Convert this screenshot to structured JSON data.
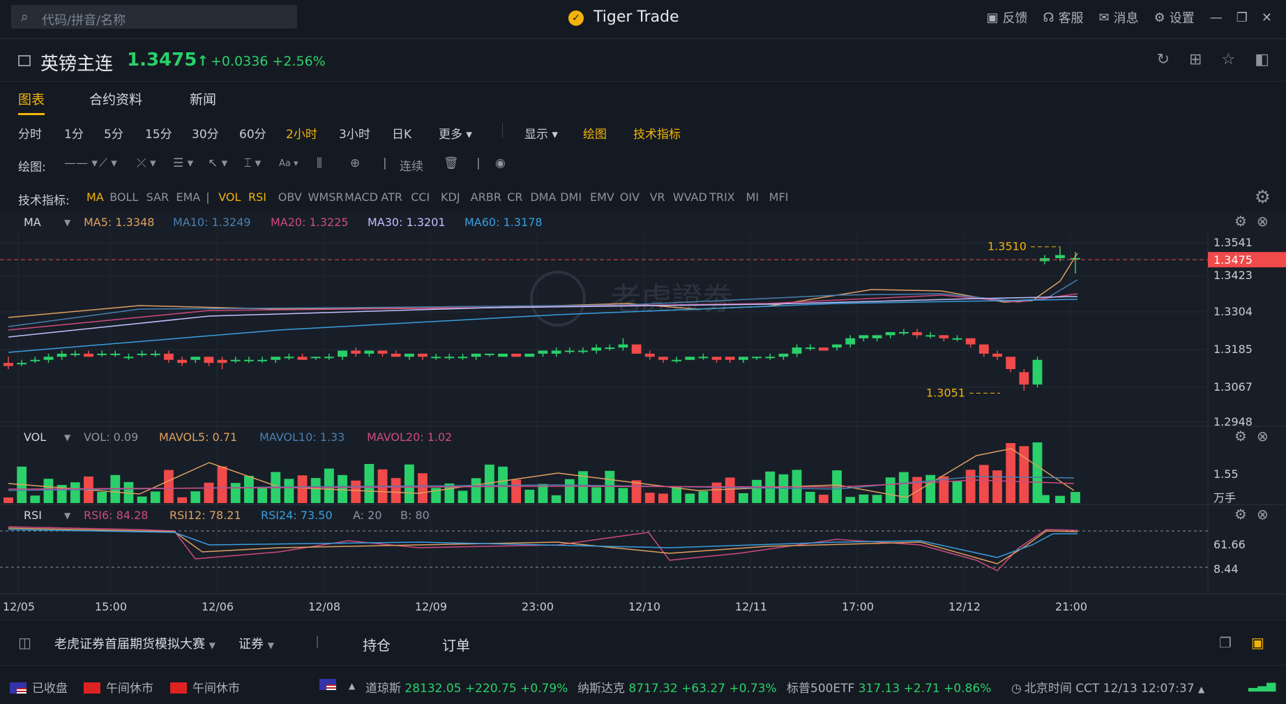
{
  "titlebar": {
    "search_placeholder": "代码/拼音/名称",
    "app_title": "Tiger Trade",
    "feedback": "反馈",
    "service": "客服",
    "messages": "消息",
    "settings": "设置"
  },
  "quote": {
    "name": "英镑主连",
    "price": "1.3475",
    "price_arrow": "↑",
    "change": "+0.0336",
    "change_pct": "+2.56%"
  },
  "tabs": [
    {
      "label": "图表",
      "active": true
    },
    {
      "label": "合约资料",
      "active": false
    },
    {
      "label": "新闻",
      "active": false
    }
  ],
  "periods": [
    "分时",
    "1分",
    "5分",
    "15分",
    "30分",
    "60分",
    "2小时",
    "3小时",
    "日K",
    "更多"
  ],
  "period_active": "2小时",
  "period_right": {
    "display": "显示",
    "draw": "绘图",
    "tech": "技术指标"
  },
  "draw_row": {
    "label": "绘图:",
    "continuous": "连续"
  },
  "indicator_row": {
    "label": "技术指标:",
    "main": [
      "MA",
      "BOLL",
      "SAR",
      "EMA"
    ],
    "sub": [
      "VOL",
      "RSI",
      "OBV",
      "WMSR",
      "MACD",
      "ATR",
      "CCI",
      "KDJ",
      "ARBR",
      "CR",
      "DMA",
      "DMI",
      "EMV",
      "OIV",
      "VR",
      "WVAD",
      "TRIX",
      "MI",
      "MFI"
    ],
    "active": [
      "MA",
      "VOL",
      "RSI"
    ]
  },
  "ma_legend": {
    "name": "MA",
    "ma5": "MA5: 1.3348",
    "ma10": "MA10: 1.3249",
    "ma20": "MA20: 1.3225",
    "ma30": "MA30: 1.3201",
    "ma60": "MA60: 1.3178"
  },
  "vol_legend": {
    "name": "VOL",
    "vol": "VOL: 0.09",
    "mavol5": "MAVOL5: 0.71",
    "mavol10": "MAVOL10: 1.33",
    "mavol20": "MAVOL20: 1.02"
  },
  "rsi_legend": {
    "name": "RSI",
    "rsi6": "RSI6: 84.28",
    "rsi12": "RSI12: 78.21",
    "rsi24": "RSI24: 73.50",
    "a": "A: 20",
    "b": "B: 80"
  },
  "price_axis": [
    "1.3541",
    "1.3423",
    "1.3304",
    "1.3185",
    "1.3067",
    "1.2948"
  ],
  "current_price_tag": "1.3475",
  "high_label": "1.3510",
  "low_label": "1.3051",
  "vol_axis": [
    "1.55",
    "万手"
  ],
  "rsi_axis": [
    "61.66",
    "8.44"
  ],
  "time_axis": [
    "12/05",
    "15:00",
    "12/06",
    "12/08",
    "12/09",
    "23:00",
    "12/10",
    "12/11",
    "17:00",
    "12/12",
    "21:00"
  ],
  "watermark": "老虎證劵",
  "colors": {
    "up": "#2ad06a",
    "down": "#f04a4a",
    "accent": "#f2b40a",
    "ma5": "#e0a060",
    "ma10": "#4a7fb0",
    "ma20": "#d04a80",
    "ma30": "#c0c0ff",
    "ma60": "#3a9ee0"
  },
  "bottom": {
    "contest": "老虎证券首届期货模拟大赛",
    "securities": "证券",
    "positions": "持仓",
    "orders": "订单"
  },
  "status": {
    "us_closed": "已收盘",
    "hk_break": "午间休市",
    "cn_break": "午间休市",
    "dow_name": "道琼斯",
    "dow_value": "28132.05",
    "dow_change": "+220.75",
    "dow_pct": "+0.79%",
    "nasdaq_name": "纳斯达克",
    "nasdaq_value": "8717.32",
    "nasdaq_change": "+63.27",
    "nasdaq_pct": "+0.73%",
    "sp_name": "标普500ETF",
    "sp_value": "317.13",
    "sp_change": "+2.71",
    "sp_pct": "+0.86%",
    "clock": "北京时间 CCT",
    "datetime": "12/13 12:07:37"
  },
  "chart_data": {
    "type": "candlestick",
    "price_range": [
      1.2948,
      1.3541
    ],
    "high": 1.351,
    "low": 1.3051,
    "last": 1.3475,
    "candles_approx": [
      [
        1.314,
        1.313,
        1.316,
        1.312
      ],
      [
        1.314,
        1.314,
        1.315,
        1.313
      ],
      [
        1.315,
        1.315,
        1.316,
        1.314
      ],
      [
        1.315,
        1.316,
        1.317,
        1.314
      ],
      [
        1.316,
        1.317,
        1.318,
        1.315
      ],
      [
        1.317,
        1.317,
        1.318,
        1.316
      ],
      [
        1.317,
        1.316,
        1.318,
        1.316
      ],
      [
        1.317,
        1.317,
        1.318,
        1.316
      ],
      [
        1.317,
        1.317,
        1.318,
        1.316
      ],
      [
        1.316,
        1.316,
        1.317,
        1.315
      ],
      [
        1.317,
        1.317,
        1.318,
        1.316
      ],
      [
        1.317,
        1.317,
        1.318,
        1.316
      ],
      [
        1.317,
        1.315,
        1.318,
        1.314
      ],
      [
        1.315,
        1.314,
        1.316,
        1.313
      ],
      [
        1.315,
        1.316,
        1.316,
        1.314
      ],
      [
        1.316,
        1.314,
        1.316,
        1.313
      ],
      [
        1.315,
        1.314,
        1.316,
        1.312
      ],
      [
        1.315,
        1.315,
        1.316,
        1.314
      ],
      [
        1.315,
        1.315,
        1.316,
        1.314
      ],
      [
        1.315,
        1.315,
        1.316,
        1.314
      ],
      [
        1.315,
        1.316,
        1.316,
        1.314
      ],
      [
        1.316,
        1.316,
        1.317,
        1.315
      ],
      [
        1.316,
        1.315,
        1.317,
        1.315
      ],
      [
        1.316,
        1.316,
        1.316,
        1.315
      ],
      [
        1.316,
        1.316,
        1.317,
        1.315
      ],
      [
        1.316,
        1.318,
        1.318,
        1.315
      ],
      [
        1.318,
        1.317,
        1.319,
        1.316
      ],
      [
        1.317,
        1.318,
        1.318,
        1.316
      ],
      [
        1.318,
        1.317,
        1.318,
        1.316
      ],
      [
        1.317,
        1.316,
        1.318,
        1.316
      ],
      [
        1.316,
        1.317,
        1.317,
        1.315
      ],
      [
        1.317,
        1.316,
        1.317,
        1.315
      ],
      [
        1.316,
        1.316,
        1.317,
        1.315
      ],
      [
        1.316,
        1.316,
        1.317,
        1.315
      ],
      [
        1.316,
        1.316,
        1.317,
        1.315
      ],
      [
        1.316,
        1.317,
        1.317,
        1.315
      ],
      [
        1.317,
        1.317,
        1.317,
        1.316
      ],
      [
        1.316,
        1.317,
        1.317,
        1.316
      ],
      [
        1.317,
        1.316,
        1.317,
        1.316
      ],
      [
        1.316,
        1.317,
        1.317,
        1.316
      ],
      [
        1.317,
        1.318,
        1.318,
        1.316
      ],
      [
        1.317,
        1.318,
        1.319,
        1.316
      ],
      [
        1.318,
        1.318,
        1.319,
        1.317
      ],
      [
        1.318,
        1.318,
        1.319,
        1.317
      ],
      [
        1.318,
        1.319,
        1.32,
        1.317
      ],
      [
        1.319,
        1.319,
        1.32,
        1.318
      ],
      [
        1.319,
        1.32,
        1.322,
        1.318
      ],
      [
        1.32,
        1.317,
        1.32,
        1.317
      ],
      [
        1.317,
        1.316,
        1.318,
        1.315
      ],
      [
        1.316,
        1.315,
        1.316,
        1.314
      ],
      [
        1.315,
        1.315,
        1.316,
        1.314
      ],
      [
        1.315,
        1.316,
        1.316,
        1.315
      ],
      [
        1.316,
        1.316,
        1.317,
        1.315
      ],
      [
        1.316,
        1.315,
        1.316,
        1.314
      ],
      [
        1.316,
        1.315,
        1.316,
        1.314
      ],
      [
        1.315,
        1.316,
        1.316,
        1.314
      ],
      [
        1.316,
        1.316,
        1.316,
        1.315
      ],
      [
        1.316,
        1.316,
        1.317,
        1.315
      ],
      [
        1.316,
        1.317,
        1.317,
        1.315
      ],
      [
        1.317,
        1.319,
        1.32,
        1.316
      ],
      [
        1.319,
        1.319,
        1.32,
        1.318
      ],
      [
        1.319,
        1.318,
        1.319,
        1.318
      ],
      [
        1.319,
        1.32,
        1.32,
        1.318
      ],
      [
        1.32,
        1.322,
        1.323,
        1.319
      ],
      [
        1.322,
        1.323,
        1.323,
        1.321
      ],
      [
        1.322,
        1.323,
        1.323,
        1.321
      ],
      [
        1.323,
        1.324,
        1.324,
        1.322
      ],
      [
        1.324,
        1.324,
        1.325,
        1.323
      ],
      [
        1.324,
        1.323,
        1.325,
        1.322
      ],
      [
        1.323,
        1.323,
        1.324,
        1.322
      ],
      [
        1.323,
        1.322,
        1.323,
        1.321
      ],
      [
        1.322,
        1.322,
        1.323,
        1.321
      ],
      [
        1.322,
        1.32,
        1.322,
        1.319
      ],
      [
        1.32,
        1.317,
        1.32,
        1.316
      ],
      [
        1.317,
        1.316,
        1.318,
        1.315
      ],
      [
        1.316,
        1.312,
        1.316,
        1.311
      ],
      [
        1.311,
        1.307,
        1.312,
        1.305
      ],
      [
        1.307,
        1.315,
        1.316,
        1.306
      ],
      [
        1.347,
        1.348,
        1.349,
        1.346
      ],
      [
        1.348,
        1.349,
        1.351,
        1.347
      ],
      [
        1.348,
        1.348,
        1.35,
        1.343
      ]
    ]
  }
}
